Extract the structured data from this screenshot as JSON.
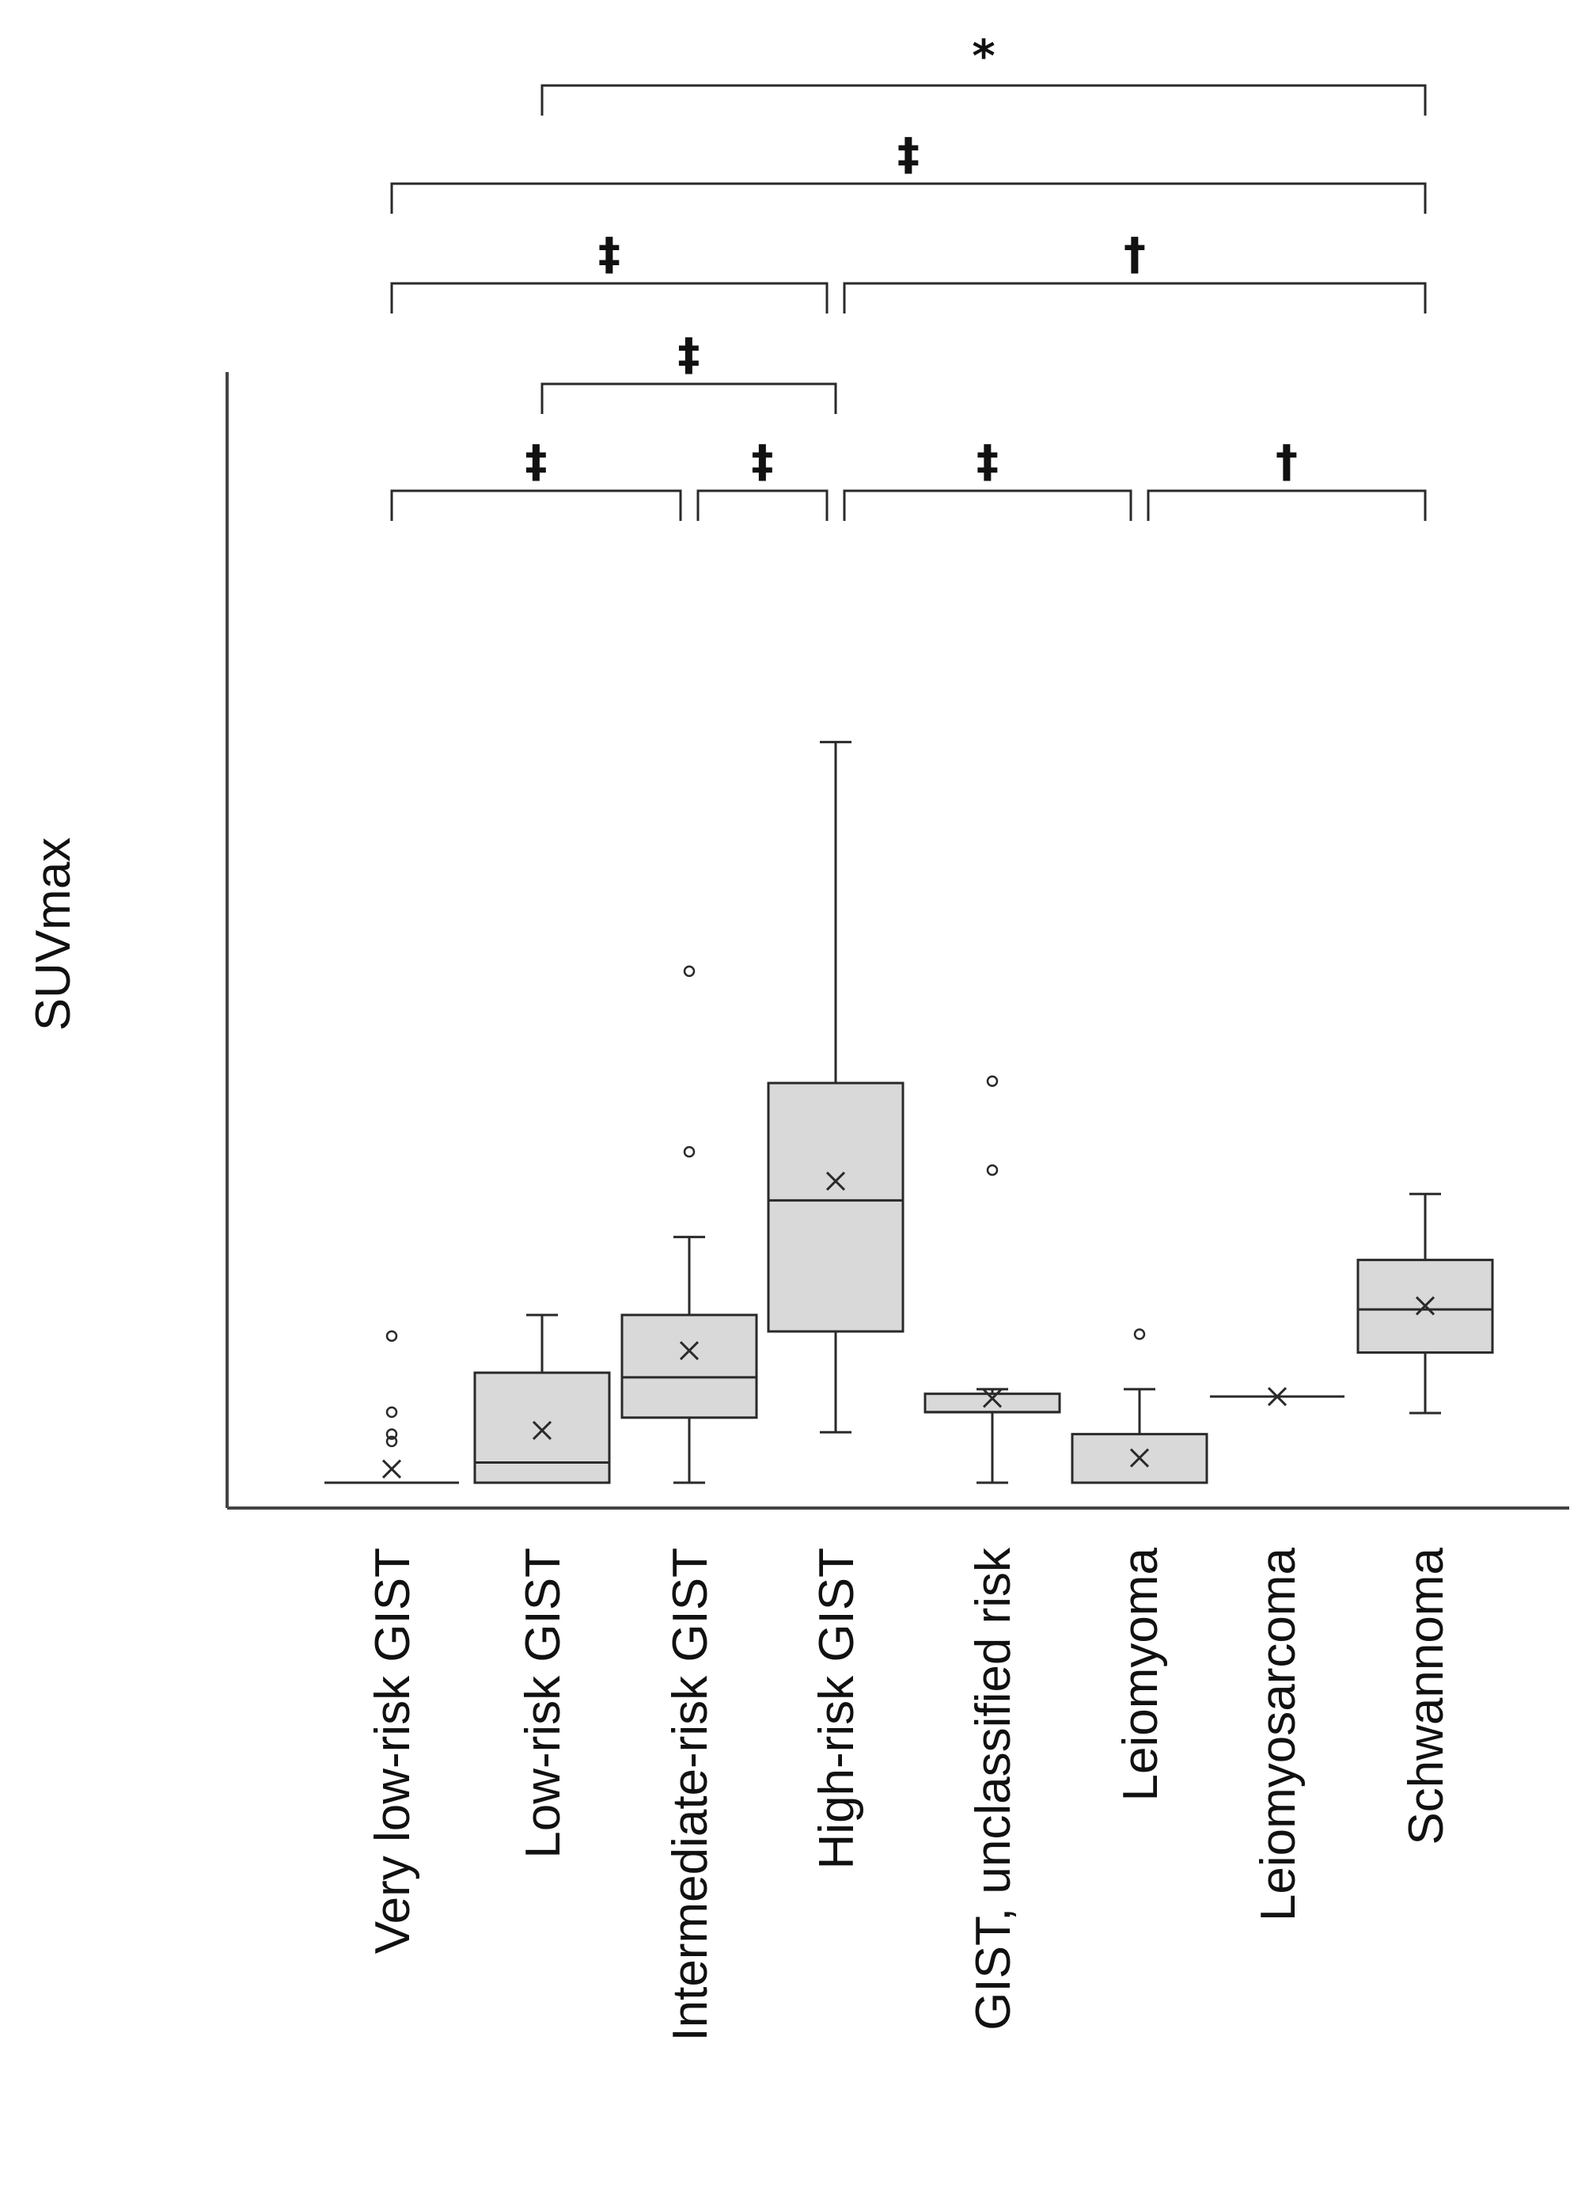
{
  "chart_data": {
    "type": "box",
    "title": "",
    "ylabel": "SUVmax",
    "xlabel": "",
    "y_tick_labels_shown": false,
    "ylim": [
      0,
      100
    ],
    "categories": [
      "Very low-risk GIST",
      "Low-risk GIST",
      "Intermediate-risk GIST",
      "High-risk GIST",
      "GIST, unclassified risk",
      "Leiomyoma",
      "Leiomyosarcoma",
      "Schwannoma"
    ],
    "boxes": [
      {
        "category": "Very low-risk GIST",
        "min": 0,
        "q1": 0,
        "median": 0,
        "q3": 0,
        "max": 0,
        "mean": 1.5,
        "outliers": [
          16.0,
          7.7,
          5.3,
          4.5
        ]
      },
      {
        "category": "Low-risk GIST",
        "min": 0,
        "q1": 0,
        "median": 2.2,
        "q3": 12.0,
        "max": 18.3,
        "mean": 5.7,
        "outliers": []
      },
      {
        "category": "Intermediate-risk GIST",
        "min": 0,
        "q1": 7.1,
        "median": 11.5,
        "q3": 18.3,
        "max": 26.8,
        "mean": 14.4,
        "outliers": [
          36.1,
          55.8
        ]
      },
      {
        "category": "High-risk GIST",
        "min": 5.5,
        "q1": 16.5,
        "median": 30.8,
        "q3": 43.6,
        "max": 80.8,
        "mean": 32.9,
        "outliers": []
      },
      {
        "category": "GIST, unclassified risk",
        "min": 0,
        "q1": 7.7,
        "median": 7.7,
        "q3": 9.7,
        "max": 10.2,
        "mean": 9.2,
        "outliers": [
          34.1,
          43.8
        ]
      },
      {
        "category": "Leiomyoma",
        "min": 0,
        "q1": 0,
        "median": 0,
        "q3": 5.3,
        "max": 10.2,
        "mean": 2.7,
        "outliers": [
          16.2
        ]
      },
      {
        "category": "Leiomyosarcoma",
        "min": 9.4,
        "q1": 9.4,
        "median": 9.4,
        "q3": 9.4,
        "max": 9.4,
        "mean": 9.4,
        "outliers": []
      },
      {
        "category": "Schwannoma",
        "min": 7.6,
        "q1": 14.2,
        "median": 18.9,
        "q3": 24.3,
        "max": 31.5,
        "mean": 19.3,
        "outliers": []
      }
    ],
    "significance": [
      {
        "from": "Very low-risk GIST",
        "to": "Intermediate-risk GIST",
        "symbol": "‡",
        "level": 1
      },
      {
        "from": "Intermediate-risk GIST",
        "to": "High-risk GIST",
        "symbol": "‡",
        "level": 1
      },
      {
        "from": "High-risk GIST",
        "to": "Leiomyoma",
        "symbol": "‡",
        "level": 1
      },
      {
        "from": "Leiomyoma",
        "to": "Schwannoma",
        "symbol": "†",
        "level": 1
      },
      {
        "from": "Low-risk GIST",
        "to": "High-risk GIST",
        "symbol": "‡",
        "level": 2
      },
      {
        "from": "Very low-risk GIST",
        "to": "High-risk GIST",
        "symbol": "‡",
        "level": 3
      },
      {
        "from": "High-risk GIST",
        "to": "Schwannoma",
        "symbol": "†",
        "level": 3
      },
      {
        "from": "Very low-risk GIST",
        "to": "Schwannoma",
        "symbol": "‡",
        "level": 4
      },
      {
        "from": "Low-risk GIST",
        "to": "Schwannoma",
        "symbol": "*",
        "level": 5
      }
    ],
    "colors": {
      "box_fill": "#d9d9d9",
      "stroke": "#2a2a2a",
      "axis": "#444444"
    }
  }
}
